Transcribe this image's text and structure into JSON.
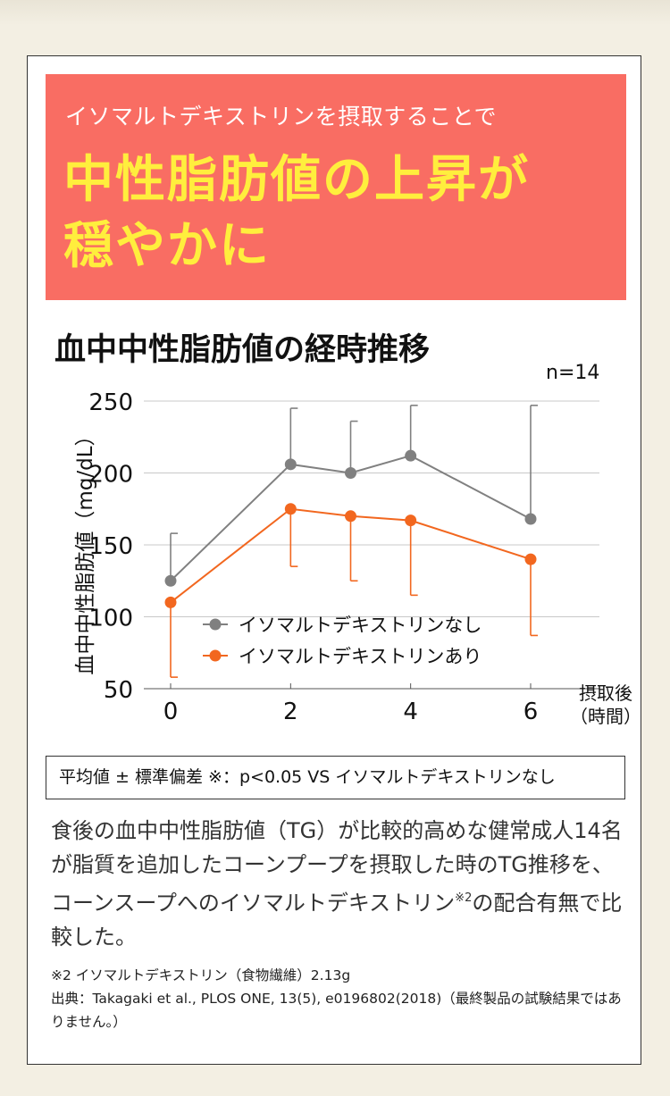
{
  "banner": {
    "subtitle": "イソマルトデキストリンを摂取することで",
    "headline_1": "中性脂肪値の上昇が",
    "headline_2": "穏やかに"
  },
  "chart_title": "血中中性脂肪値の経時推移",
  "n_label": "n=14",
  "note": "平均値 ± 標準偏差 ※：p<0.05 VS イソマルトデキストリンなし",
  "description": {
    "text": "食後の血中中性脂肪値（TG）が比較的高めな健常成人14名が脂質を追加したコーンプープを摂取した時のTG推移を、コーンスープへのイソマルトデキストリン",
    "sup": "※2",
    "tail": "の配合有無で比較した。"
  },
  "footnotes": {
    "line1": "※2 イソマルトデキストリン（食物繊維）2.13g",
    "line2": "出典：Takagaki et al., PLOS ONE, 13(5), e0196802(2018)（最終製品の試験結果ではありません。）"
  },
  "colors": {
    "banner_bg": "#f96d63",
    "headline": "#ffee3d",
    "series_without": "#808080",
    "series_with": "#f2671f"
  },
  "chart_data": {
    "type": "line",
    "ylabel": "血中中性脂肪値（mg/dL）",
    "xlabel": "摂取後（時間）",
    "xlabel_1": "摂取後",
    "xlabel_2": "（時間）",
    "xticks": [
      0,
      2,
      4,
      6
    ],
    "yticks": [
      50,
      100,
      150,
      200,
      250
    ],
    "xlim": [
      0,
      6.5
    ],
    "ylim": [
      50,
      250
    ],
    "grid": true,
    "legend_position": "center-left",
    "series": [
      {
        "name": "イソマルトデキストリンなし",
        "color": "#808080",
        "x": [
          0,
          2,
          3,
          4,
          6
        ],
        "y": [
          125,
          206,
          200,
          212,
          168
        ],
        "err_upper": [
          158,
          245,
          236,
          247,
          247
        ],
        "err_lower": [
          null,
          null,
          null,
          null,
          null
        ]
      },
      {
        "name": "イソマルトデキストリンあり",
        "color": "#f2671f",
        "x": [
          0,
          2,
          3,
          4,
          6
        ],
        "y": [
          110,
          175,
          170,
          167,
          140
        ],
        "err_upper": [
          null,
          null,
          null,
          null,
          null
        ],
        "err_lower": [
          58,
          135,
          125,
          115,
          87
        ]
      }
    ]
  }
}
